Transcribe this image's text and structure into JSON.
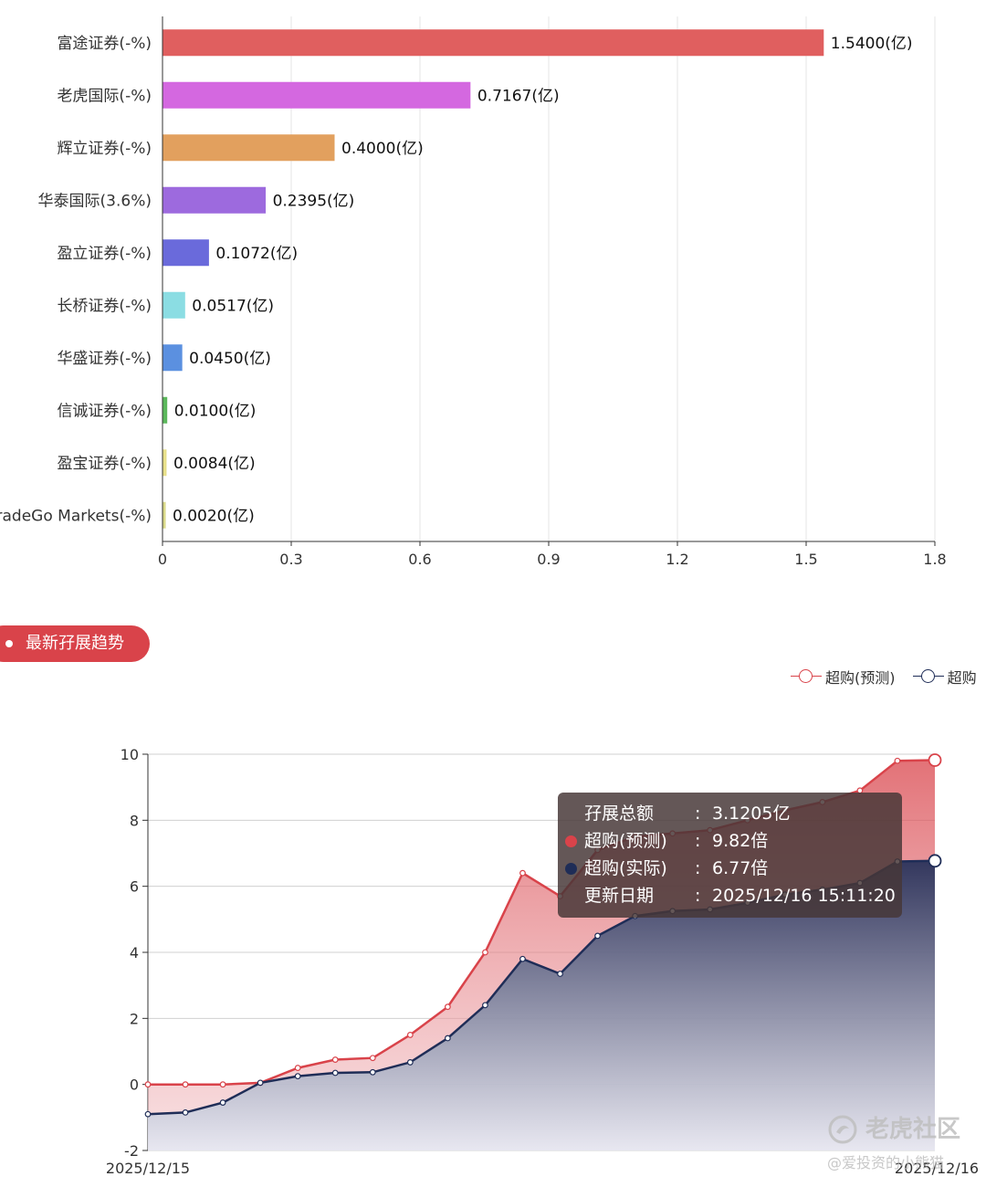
{
  "broker_chart": {
    "chart_data": {
      "type": "bar",
      "orientation": "horizontal",
      "categories": [
        "富途证券(-%)",
        "老虎国际(-%)",
        "辉立证券(-%)",
        "华泰国际(3.6%)",
        "盈立证券(-%)",
        "长桥证券(-%)",
        "华盛证券(-%)",
        "信诚证券(-%)",
        "盈宝证券(-%)",
        "TradeGo Markets(-%)"
      ],
      "values": [
        1.54,
        0.7167,
        0.4,
        0.2395,
        0.1072,
        0.0517,
        0.045,
        0.01,
        0.0084,
        0.002
      ],
      "value_labels": [
        "1.5400(亿)",
        "0.7167(亿)",
        "0.4000(亿)",
        "0.2395(亿)",
        "0.1072(亿)",
        "0.0517(亿)",
        "0.0450(亿)",
        "0.0100(亿)",
        "0.0084(亿)",
        "0.0020(亿)"
      ],
      "colors": [
        "#e05f5f",
        "#d468e0",
        "#e2a05e",
        "#9d6ade",
        "#6a6adb",
        "#8bdde3",
        "#5b90e0",
        "#5cb85c",
        "#e8e08a",
        "#d9d98a"
      ],
      "xlim": [
        0,
        1.8
      ],
      "xticks": [
        "0",
        "0.3",
        "0.6",
        "0.9",
        "1.2",
        "1.5",
        "1.8"
      ],
      "grid": true
    }
  },
  "section": {
    "title": "最新孖展趋势"
  },
  "legend": {
    "items": [
      "超购(预测)",
      "超购"
    ]
  },
  "trend_chart": {
    "chart_data": {
      "type": "area",
      "x_labels": [
        "2025/12/15",
        "2025/12/16"
      ],
      "ylim": [
        -2,
        10
      ],
      "yticks": [
        "-2",
        "0",
        "2",
        "4",
        "6",
        "8",
        "10"
      ],
      "grid": true,
      "series": [
        {
          "name": "超购(预测)",
          "color": "#d9434a",
          "values": [
            0,
            0,
            0,
            0.05,
            0.5,
            0.75,
            0.8,
            1.5,
            2.35,
            4.0,
            6.4,
            5.7,
            7.1,
            7.5,
            7.6,
            7.7,
            8.0,
            8.3,
            8.55,
            8.9,
            9.8,
            9.82
          ]
        },
        {
          "name": "超购(实际)",
          "color": "#1f2d57",
          "values": [
            -0.9,
            -0.85,
            -0.55,
            0.05,
            0.25,
            0.35,
            0.37,
            0.67,
            1.4,
            2.4,
            3.8,
            3.35,
            4.5,
            5.1,
            5.25,
            5.3,
            5.5,
            5.75,
            5.9,
            6.1,
            6.75,
            6.77
          ]
        }
      ]
    }
  },
  "tooltip": {
    "rows": [
      {
        "key": "孖展总额",
        "value": "3.1205亿"
      },
      {
        "key": "超购(预测)",
        "value": "9.82倍"
      },
      {
        "key": "超购(实际)",
        "value": "6.77倍"
      },
      {
        "key": "更新日期",
        "value": "2025/12/16 15:11:20"
      }
    ],
    "colon": ":"
  },
  "watermark": {
    "title": "老虎社区",
    "handle": "@爱投资的小熊猫"
  }
}
